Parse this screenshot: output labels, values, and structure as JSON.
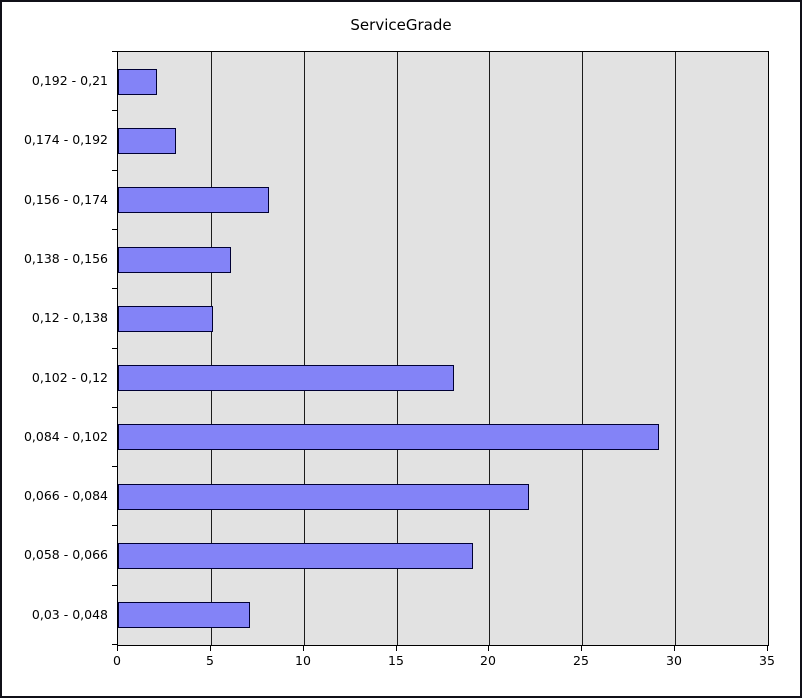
{
  "chart": {
    "title": "ServiceGrade"
  },
  "chart_data": {
    "type": "bar",
    "orientation": "horizontal",
    "title": "ServiceGrade",
    "categories": [
      "0,192 - 0,21",
      "0,174 - 0,192",
      "0,156 - 0,174",
      "0,138 - 0,156",
      "0,12 - 0,138",
      "0,102 - 0,12",
      "0,084 - 0,102",
      "0,066 - 0,084",
      "0,058 - 0,066",
      "0,03 - 0,048"
    ],
    "values": [
      2,
      3,
      8,
      6,
      5,
      18,
      29,
      22,
      19,
      7
    ],
    "xlabel": "",
    "ylabel": "",
    "xlim": [
      0,
      35
    ],
    "x_ticks": [
      0,
      5,
      10,
      15,
      20,
      25,
      30,
      35
    ],
    "grid": true,
    "legend": "none",
    "colors": {
      "bar_fill": "#8383f7",
      "bar_border": "#000033",
      "plot_background": "#e2e2e2",
      "gridline": "#1c1c1c",
      "text": "#000000"
    }
  }
}
